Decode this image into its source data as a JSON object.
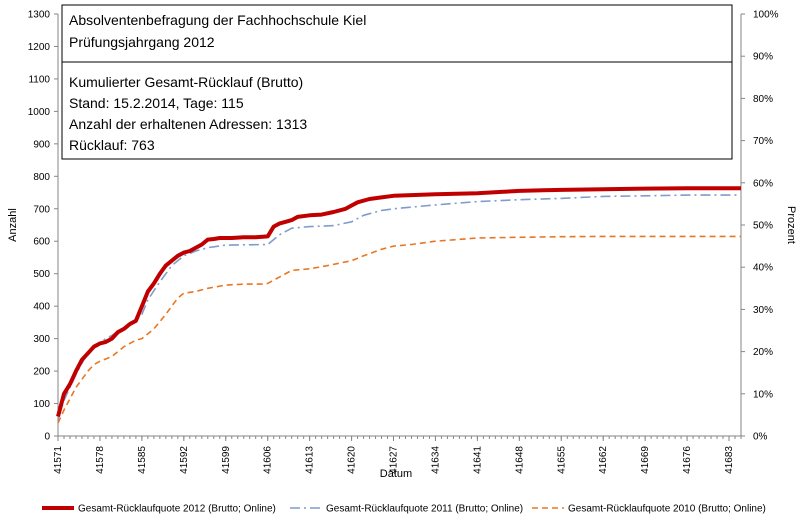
{
  "chart_data": {
    "type": "line",
    "title": "",
    "xlabel": "Datum",
    "ylabel": "Anzahl",
    "y2label": "Prozent",
    "ylim": [
      0,
      1300
    ],
    "y2lim": [
      0,
      100
    ],
    "xlim": [
      41571,
      41685
    ],
    "x_ticks": [
      41571,
      41578,
      41585,
      41592,
      41599,
      41606,
      41613,
      41620,
      41627,
      41634,
      41641,
      41648,
      41655,
      41662,
      41669,
      41676,
      41683
    ],
    "y_ticks": [
      0,
      100,
      200,
      300,
      400,
      500,
      600,
      700,
      800,
      900,
      1000,
      1100,
      1200,
      1300
    ],
    "y2_ticks": [
      "0%",
      "10%",
      "20%",
      "30%",
      "40%",
      "50%",
      "60%",
      "70%",
      "80%",
      "90%",
      "100%"
    ],
    "grid": false,
    "legend_position": "bottom",
    "annotations": [
      "Absolventenbefragung der Fachhochschule Kiel",
      "Prüfungsjahrgang  2012",
      "Kumulierter  Gesamt-Rücklauf (Brutto)",
      "Stand: 15.2.2014, Tage: 115",
      "Anzahl der erhaltenen Adressen: 1313",
      "Rücklauf: 763"
    ],
    "series": [
      {
        "name": "Gesamt-Rücklaufquote 2012 (Brutto; Online)",
        "color": "#c00000",
        "style": "solid",
        "x": [
          41571,
          41572,
          41573,
          41574,
          41575,
          41576,
          41577,
          41578,
          41579,
          41580,
          41581,
          41582,
          41583,
          41584,
          41585,
          41586,
          41587,
          41588,
          41589,
          41590,
          41591,
          41592,
          41593,
          41594,
          41595,
          41596,
          41597,
          41598,
          41600,
          41602,
          41604,
          41606,
          41607,
          41608,
          41609,
          41610,
          41611,
          41613,
          41615,
          41617,
          41619,
          41620,
          41621,
          41623,
          41625,
          41627,
          41630,
          41634,
          41641,
          41645,
          41648,
          41652,
          41655,
          41662,
          41669,
          41676,
          41683,
          41685
        ],
        "y": [
          60,
          130,
          160,
          200,
          235,
          255,
          275,
          285,
          290,
          300,
          320,
          330,
          345,
          355,
          400,
          445,
          470,
          500,
          525,
          540,
          555,
          565,
          570,
          580,
          590,
          605,
          607,
          610,
          610,
          612,
          612,
          615,
          645,
          655,
          660,
          665,
          675,
          680,
          682,
          690,
          700,
          710,
          720,
          730,
          735,
          740,
          742,
          745,
          748,
          752,
          755,
          757,
          758,
          760,
          762,
          763,
          763,
          763
        ]
      },
      {
        "name": "Gesamt-Rücklaufquote 2011 (Brutto; Online)",
        "color": "#7f9ccb",
        "style": "dashdot",
        "x": [
          41571,
          41572,
          41573,
          41574,
          41575,
          41576,
          41577,
          41578,
          41580,
          41582,
          41584,
          41585,
          41586,
          41588,
          41590,
          41592,
          41594,
          41596,
          41599,
          41606,
          41608,
          41610,
          41613,
          41617,
          41620,
          41622,
          41625,
          41627,
          41630,
          41634,
          41641,
          41648,
          41655,
          41662,
          41669,
          41676,
          41683,
          41685
        ],
        "y": [
          50,
          110,
          150,
          190,
          225,
          255,
          275,
          290,
          310,
          335,
          355,
          375,
          420,
          475,
          525,
          555,
          570,
          580,
          588,
          590,
          620,
          640,
          645,
          648,
          660,
          680,
          695,
          700,
          705,
          712,
          722,
          728,
          732,
          738,
          740,
          742,
          742,
          742
        ]
      },
      {
        "name": "Gesamt-Rücklaufquote 2010 (Brutto; Online)",
        "color": "#e87722",
        "style": "dashed",
        "x": [
          41571,
          41572,
          41573,
          41574,
          41575,
          41576,
          41577,
          41578,
          41580,
          41582,
          41584,
          41585,
          41587,
          41589,
          41591,
          41592,
          41594,
          41596,
          41599,
          41602,
          41605,
          41606,
          41608,
          41610,
          41613,
          41616,
          41620,
          41622,
          41625,
          41627,
          41630,
          41634,
          41641,
          41648,
          41655,
          41662,
          41669,
          41676,
          41683,
          41685
        ],
        "y": [
          40,
          80,
          115,
          150,
          175,
          200,
          220,
          230,
          245,
          275,
          295,
          300,
          330,
          375,
          425,
          440,
          445,
          455,
          465,
          468,
          468,
          470,
          490,
          510,
          515,
          525,
          540,
          555,
          575,
          585,
          590,
          600,
          610,
          612,
          614,
          615,
          615,
          615,
          615,
          615
        ]
      }
    ]
  }
}
